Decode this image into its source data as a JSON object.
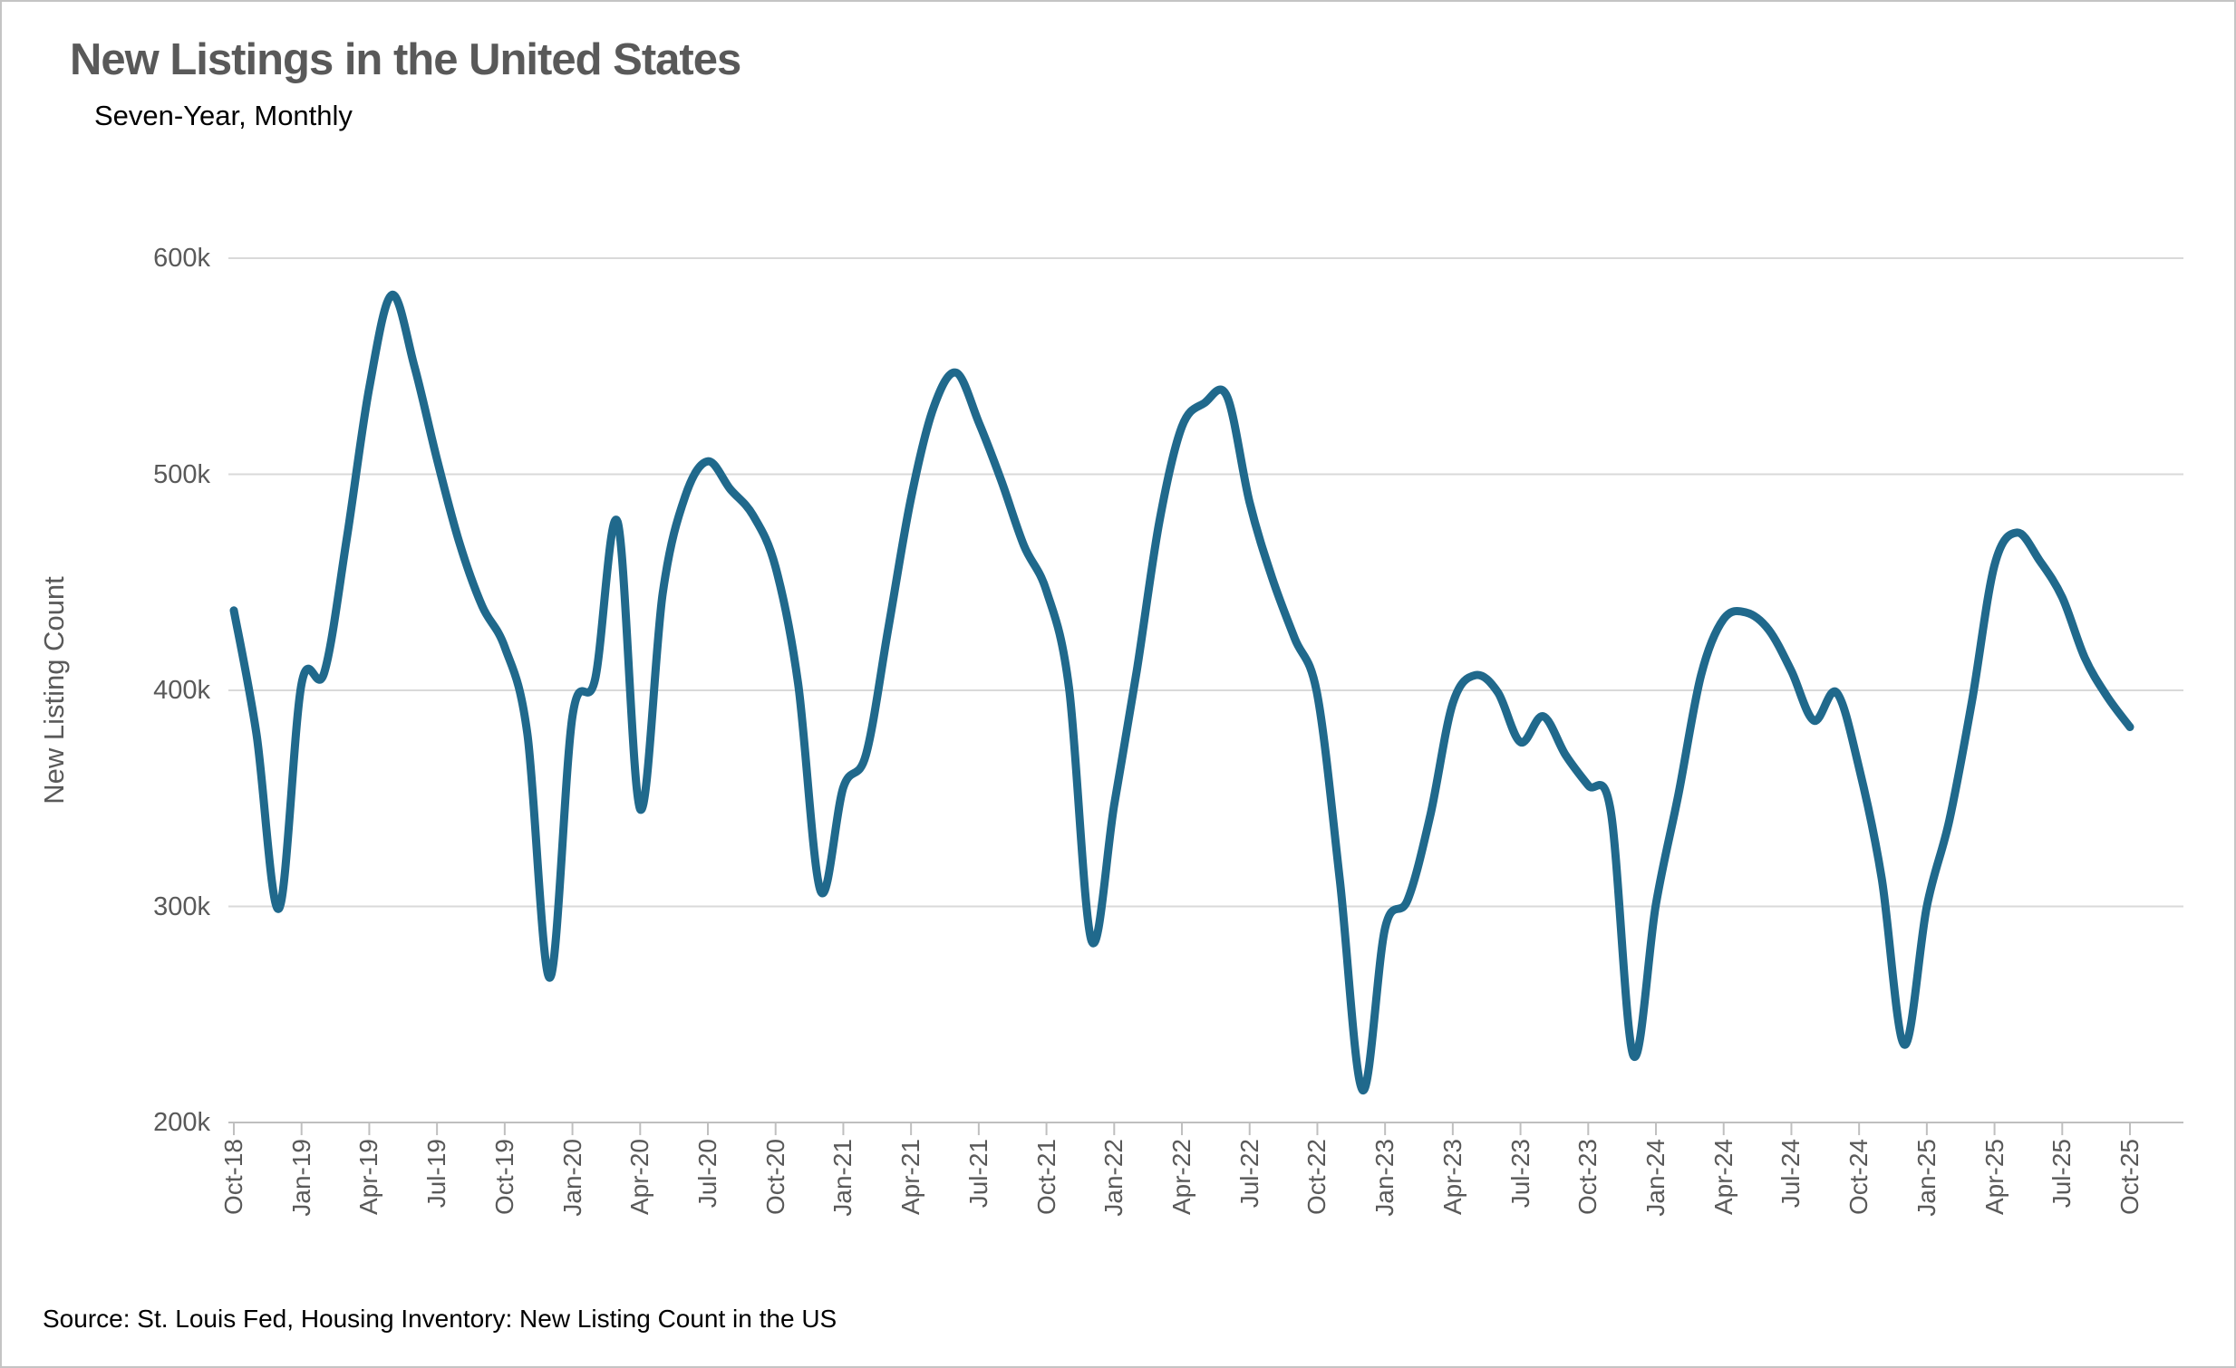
{
  "header": {
    "title": "New Listings in the United States",
    "subtitle": "Seven-Year, Monthly"
  },
  "footer": {
    "source": "Source: St. Louis Fed, Housing Inventory: New Listing Count in the US"
  },
  "colors": {
    "line": "#20698C",
    "grid": "#D9D9D9",
    "axis": "#BFBFBF",
    "label_gray": "#595959",
    "text_black": "#000000"
  },
  "chart_data": {
    "type": "line",
    "title": "New Listings in the United States",
    "subtitle": "Seven-Year, Monthly",
    "xlabel": "",
    "ylabel": "New Listing Count",
    "unit": "listings, thousands",
    "x_frequency": "monthly",
    "x_start": "Oct-2018",
    "x_end": "Oct-2025",
    "ylim": [
      200000,
      600000
    ],
    "grid": "horizontal",
    "legend": "none",
    "y_tick_labels": [
      "600k",
      "500k",
      "400k",
      "300k",
      "200k"
    ],
    "y_tick_values": [
      600,
      500,
      400,
      300,
      200
    ],
    "x_tick_labels": [
      "Oct-18",
      "Jan-19",
      "Apr-19",
      "Jul-19",
      "Oct-19",
      "Jan-20",
      "Apr-20",
      "Jul-20",
      "Oct-20",
      "Jan-21",
      "Apr-21",
      "Jul-21",
      "Oct-21",
      "Jan-22",
      "Apr-22",
      "Jul-22",
      "Oct-22",
      "Jan-23",
      "Apr-23",
      "Jul-23",
      "Oct-23",
      "Jan-24",
      "Apr-24",
      "Jul-24",
      "Oct-24",
      "Jan-25",
      "Apr-25",
      "Jul-25",
      "Oct-25"
    ],
    "x_tick_every_months": 3,
    "series": [
      {
        "name": "New Listing Count",
        "values_thousands": [
          437,
          380,
          299,
          403,
          408,
          470,
          540,
          583,
          550,
          507,
          468,
          439,
          420,
          380,
          267,
          388,
          405,
          478,
          345,
          445,
          490,
          506,
          493,
          481,
          457,
          403,
          307,
          355,
          370,
          429,
          489,
          531,
          547,
          524,
          497,
          467,
          446,
          401,
          284,
          347,
          409,
          478,
          522,
          533,
          536,
          487,
          452,
          424,
          398,
          312,
          215,
          290,
          303,
          342,
          394,
          407,
          399,
          376,
          388,
          370,
          356,
          344,
          231,
          301,
          352,
          407,
          433,
          436,
          428,
          409,
          386,
          399,
          364,
          313,
          236,
          300,
          340,
          395,
          458,
          473,
          460,
          443,
          415,
          397,
          383
        ]
      }
    ]
  }
}
